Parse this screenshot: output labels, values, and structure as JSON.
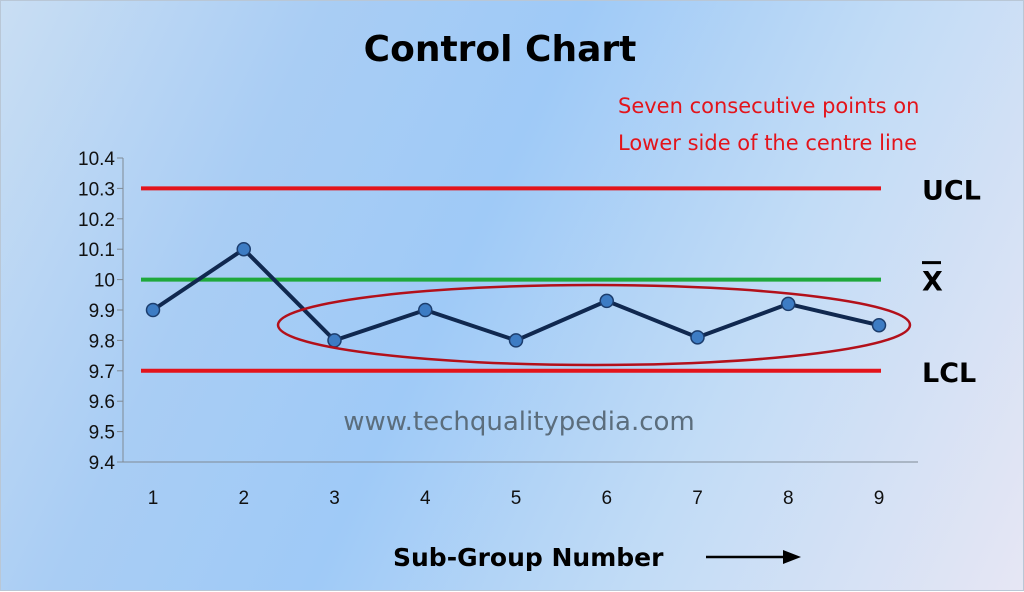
{
  "chart_data": {
    "type": "line",
    "title": "Control Chart",
    "xlabel": "Sub-Group Number",
    "x": [
      1,
      2,
      3,
      4,
      5,
      6,
      7,
      8,
      9
    ],
    "values": [
      9.9,
      10.1,
      9.8,
      9.9,
      9.8,
      9.93,
      9.81,
      9.92,
      9.85
    ],
    "ylim": [
      9.4,
      10.4
    ],
    "y_ticks": [
      "10.4",
      "10.3",
      "10.2",
      "10.1",
      "10",
      "9.9",
      "9.8",
      "9.7",
      "9.6",
      "9.5",
      "9.4"
    ],
    "x_ticks": [
      "1",
      "2",
      "3",
      "4",
      "5",
      "6",
      "7",
      "8",
      "9"
    ],
    "reference_lines": [
      {
        "label": "UCL",
        "value": 10.3,
        "color": "#e3141b"
      },
      {
        "label": "X",
        "value": 10.0,
        "color": "#1fa83b"
      },
      {
        "label": "LCL",
        "value": 9.7,
        "color": "#e3141b"
      }
    ],
    "annotation": {
      "lines": [
        "Seven consecutive points on",
        "Lower side of the centre line"
      ],
      "color": "#e3141b"
    },
    "highlight_ellipse_color": "#b3101a",
    "series_color": "#10284f",
    "marker_color": "#3d7cc4",
    "grid": false
  },
  "watermark": "www.techqualitypedia.com"
}
